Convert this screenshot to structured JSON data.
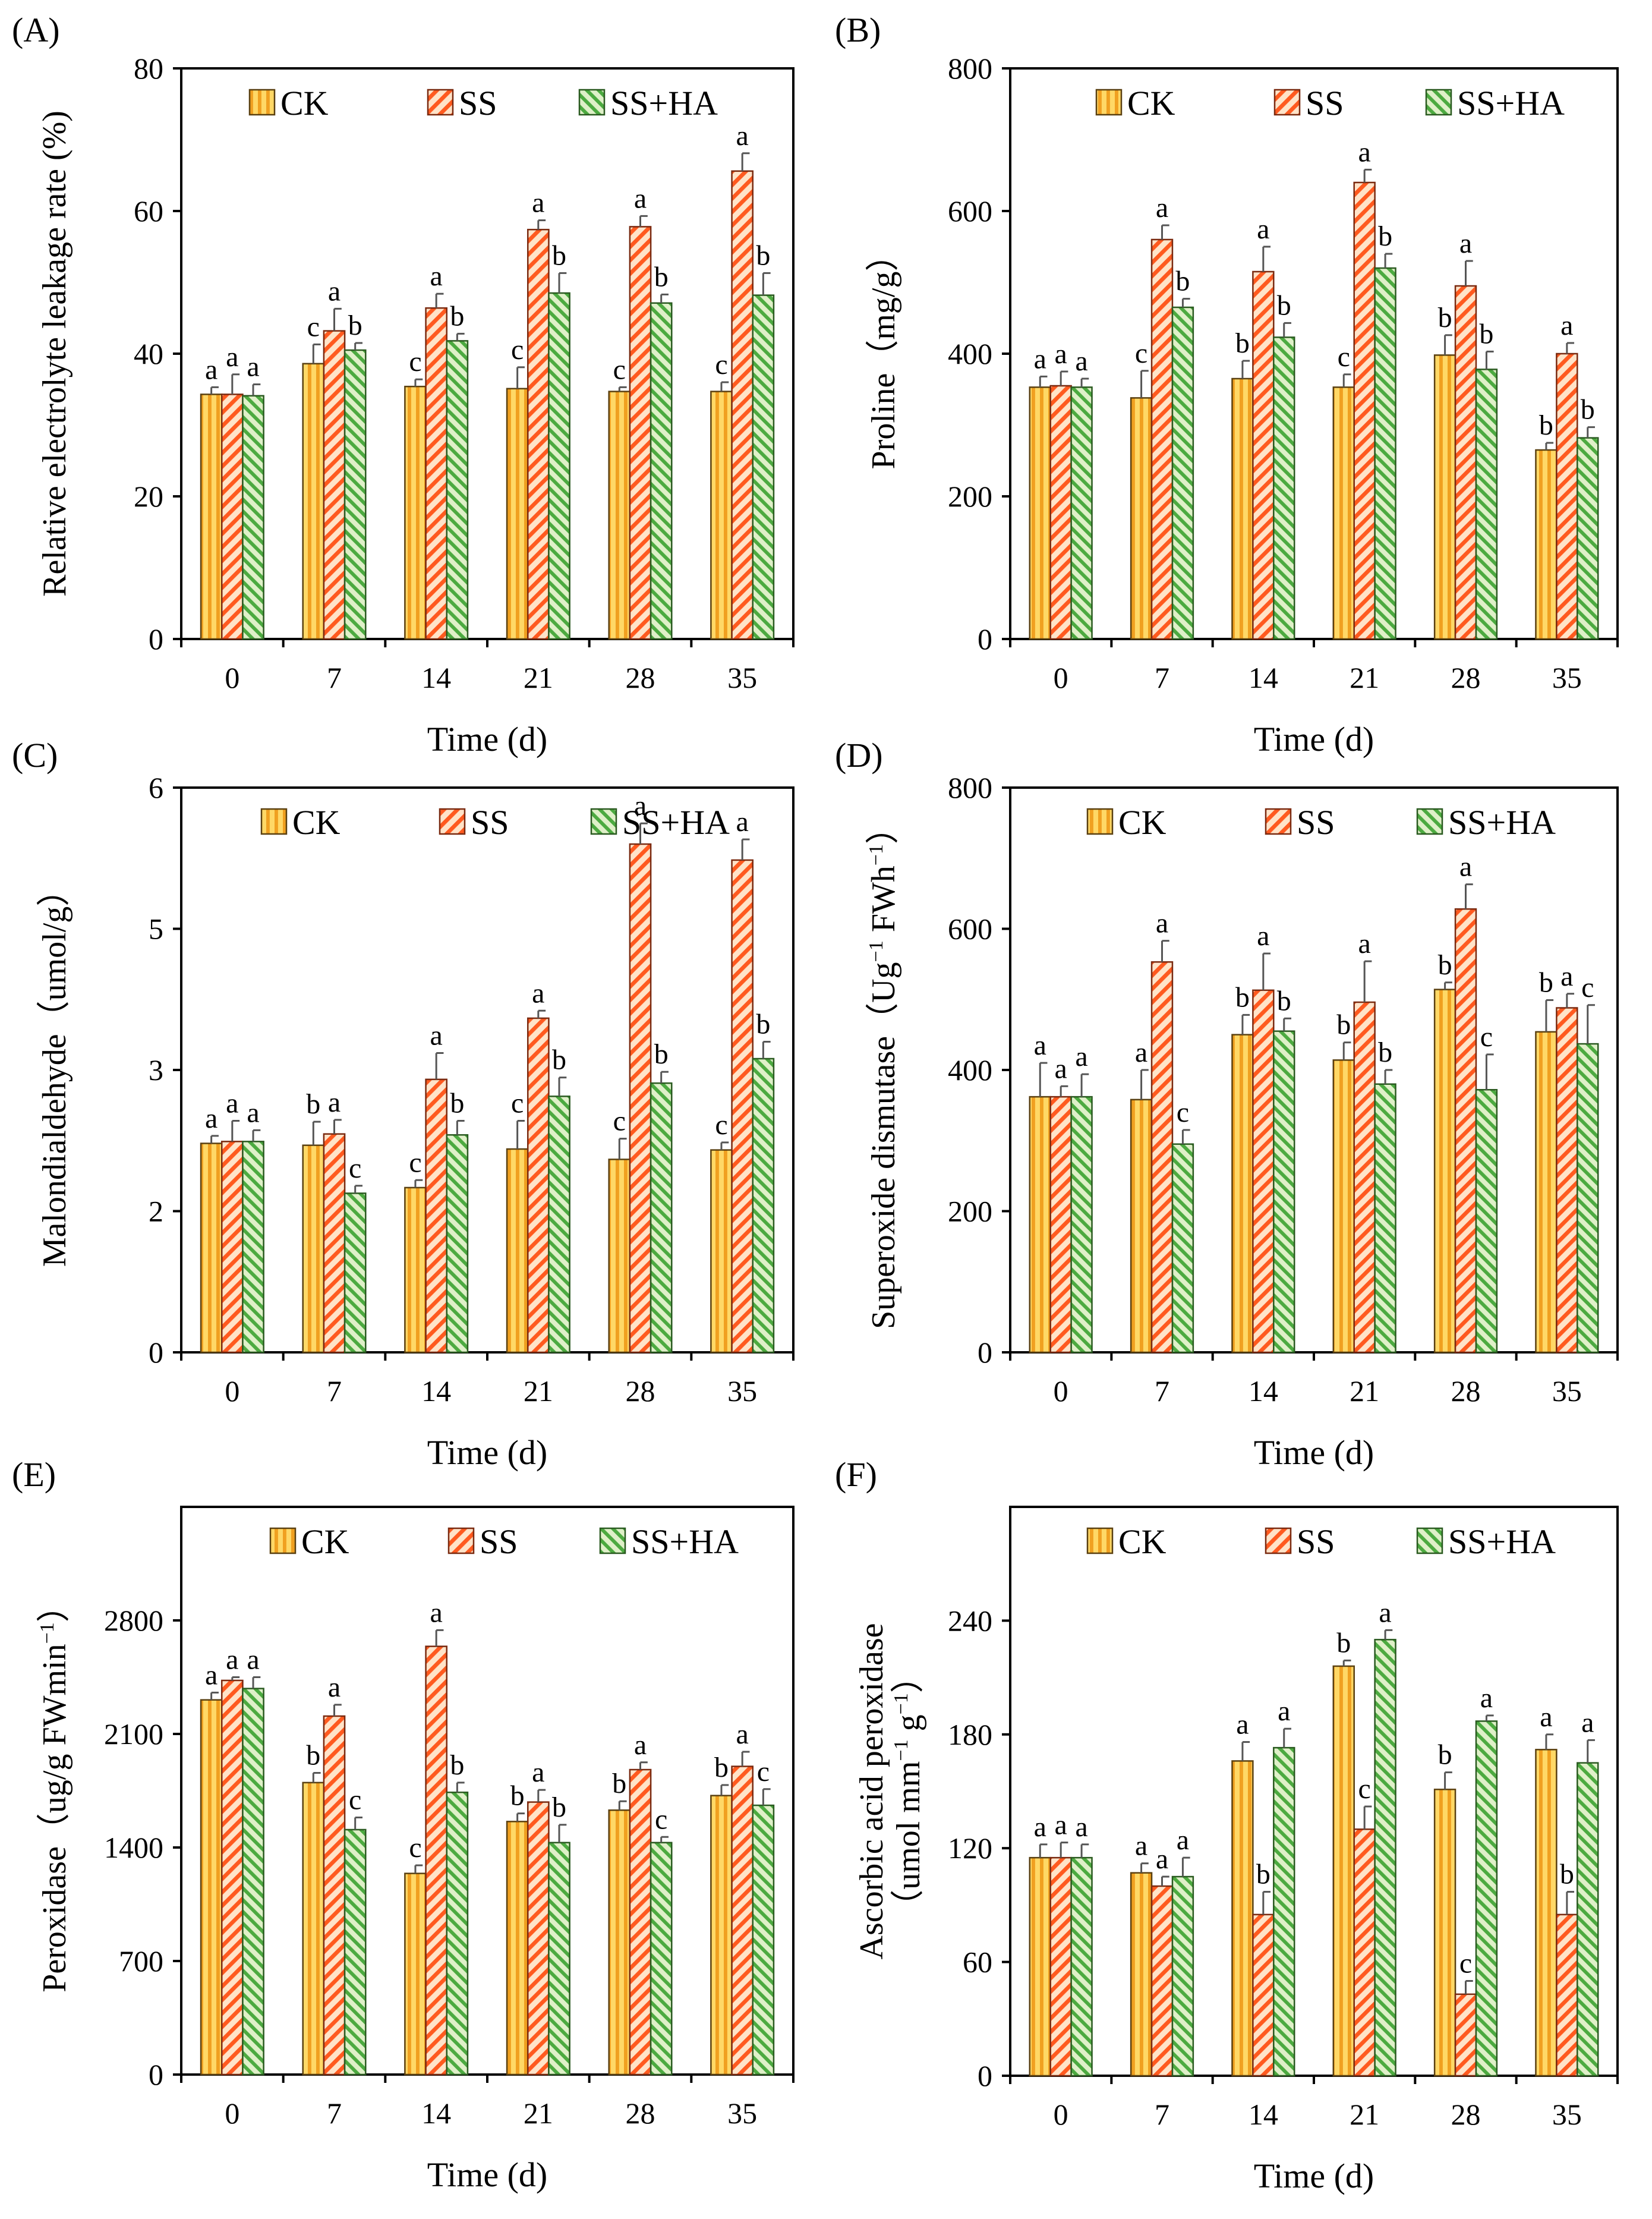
{
  "figure": {
    "legend_labels": [
      "CK",
      "SS",
      "SS+HA"
    ]
  },
  "colors": {
    "CK": {
      "fill": "#ffd866",
      "stripe": "#f0a020",
      "edge": "#5a4010"
    },
    "SS": {
      "fill": "#ffe3c8",
      "stripe": "#ff5a1f",
      "edge": "#7a2a10"
    },
    "SS+HA": {
      "fill": "#dff0c8",
      "stripe": "#4caa40",
      "edge": "#2a5a20"
    }
  },
  "chart_data": [
    {
      "id": "A",
      "panel_label": "(A)",
      "type": "bar",
      "title": "",
      "xlabel": "Time (d)",
      "ylabel_lines": [
        "Relative electrolyte leakage rate (%)"
      ],
      "categories": [
        "0",
        "7",
        "14",
        "21",
        "28",
        "35"
      ],
      "ylim": [
        0,
        80
      ],
      "yticks": [
        0,
        20,
        40,
        60,
        80
      ],
      "tick_labels": [
        "0",
        "20",
        "40",
        "60",
        "80"
      ],
      "series": [
        {
          "name": "CK",
          "values": [
            34.3,
            38.6,
            35.4,
            35.1,
            34.7,
            34.7
          ],
          "errors": [
            1.0,
            2.7,
            1.0,
            3.0,
            0.6,
            1.3
          ],
          "letters": [
            "a",
            "c",
            "c",
            "c",
            "c",
            "c"
          ]
        },
        {
          "name": "SS",
          "values": [
            34.3,
            43.2,
            46.4,
            57.4,
            57.8,
            65.6
          ],
          "errors": [
            2.8,
            3.1,
            2.0,
            1.3,
            1.5,
            2.5
          ],
          "letters": [
            "a",
            "a",
            "a",
            "a",
            "a",
            "a"
          ]
        },
        {
          "name": "SS+HA",
          "values": [
            34.1,
            40.5,
            41.8,
            48.5,
            47.1,
            48.2
          ],
          "errors": [
            1.6,
            1.0,
            1.0,
            2.8,
            1.2,
            3.1
          ],
          "letters": [
            "a",
            "b",
            "b",
            "b",
            "b",
            "b"
          ]
        }
      ]
    },
    {
      "id": "B",
      "panel_label": "(B)",
      "type": "bar",
      "title": "",
      "xlabel": "Time (d)",
      "ylabel_lines": [
        "Proline（mg/g）"
      ],
      "categories": [
        "0",
        "7",
        "14",
        "21",
        "28",
        "35"
      ],
      "ylim": [
        0,
        800
      ],
      "yticks": [
        0,
        200,
        400,
        600,
        800
      ],
      "tick_labels": [
        "0",
        "200",
        "400",
        "600",
        "800"
      ],
      "series": [
        {
          "name": "CK",
          "values": [
            353,
            338,
            365,
            353,
            398,
            265
          ],
          "errors": [
            15,
            38,
            25,
            18,
            28,
            10
          ],
          "letters": [
            "a",
            "c",
            "b",
            "c",
            "b",
            "b"
          ]
        },
        {
          "name": "SS",
          "values": [
            355,
            560,
            515,
            640,
            495,
            400
          ],
          "errors": [
            20,
            20,
            35,
            18,
            35,
            15
          ],
          "letters": [
            "a",
            "a",
            "a",
            "a",
            "a",
            "a"
          ]
        },
        {
          "name": "SS+HA",
          "values": [
            353,
            465,
            423,
            520,
            378,
            282
          ],
          "errors": [
            12,
            12,
            20,
            20,
            25,
            15
          ],
          "letters": [
            "a",
            "b",
            "b",
            "b",
            "b",
            "b"
          ]
        }
      ]
    },
    {
      "id": "C",
      "panel_label": "(C)",
      "type": "bar",
      "title": "",
      "xlabel": "Time (d)",
      "ylabel_lines": [
        "Malondialdehyde（umol/g）"
      ],
      "categories": [
        "0",
        "7",
        "14",
        "21",
        "28",
        "35"
      ],
      "ylim": [
        0,
        6
      ],
      "yticks": [
        0,
        1.5,
        3,
        4.5,
        6
      ],
      "tick_labels": [
        "0",
        "2",
        "3",
        "5",
        "6"
      ],
      "series": [
        {
          "name": "CK",
          "values": [
            2.22,
            2.2,
            1.75,
            2.16,
            2.05,
            2.15
          ],
          "errors": [
            0.08,
            0.25,
            0.08,
            0.3,
            0.22,
            0.08
          ],
          "letters": [
            "a",
            "b",
            "c",
            "c",
            "c",
            "c"
          ]
        },
        {
          "name": "SS",
          "values": [
            2.24,
            2.32,
            2.9,
            3.55,
            5.4,
            5.23
          ],
          "errors": [
            0.22,
            0.15,
            0.28,
            0.08,
            0.22,
            0.22
          ],
          "letters": [
            "a",
            "a",
            "a",
            "a",
            "a",
            "a"
          ]
        },
        {
          "name": "SS+HA",
          "values": [
            2.24,
            1.69,
            2.31,
            2.72,
            2.86,
            3.12
          ],
          "errors": [
            0.12,
            0.08,
            0.15,
            0.2,
            0.12,
            0.18
          ],
          "letters": [
            "a",
            "c",
            "b",
            "b",
            "b",
            "b"
          ]
        }
      ]
    },
    {
      "id": "D",
      "panel_label": "(D)",
      "type": "bar",
      "title": "",
      "xlabel": "Time (d)",
      "ylabel_lines": [
        "Superoxide dismutase（Ug",
        "−1",
        " FWh",
        "−1",
        "）"
      ],
      "categories": [
        "0",
        "7",
        "14",
        "21",
        "28",
        "35"
      ],
      "ylim": [
        0,
        800
      ],
      "yticks": [
        0,
        200,
        400,
        600,
        800
      ],
      "tick_labels": [
        "0",
        "200",
        "400",
        "600",
        "800"
      ],
      "series": [
        {
          "name": "CK",
          "values": [
            362,
            358,
            450,
            414,
            514,
            454
          ],
          "errors": [
            48,
            42,
            28,
            25,
            10,
            45
          ],
          "letters": [
            "a",
            "a",
            "b",
            "b",
            "b",
            "b"
          ]
        },
        {
          "name": "SS",
          "values": [
            362,
            553,
            513,
            496,
            628,
            488
          ],
          "errors": [
            15,
            30,
            52,
            58,
            35,
            20
          ],
          "letters": [
            "a",
            "a",
            "a",
            "a",
            "a",
            "a"
          ]
        },
        {
          "name": "SS+HA",
          "values": [
            362,
            295,
            455,
            380,
            372,
            437
          ],
          "errors": [
            32,
            20,
            18,
            20,
            50,
            55
          ],
          "letters": [
            "a",
            "c",
            "b",
            "b",
            "c",
            "c"
          ]
        }
      ]
    },
    {
      "id": "E",
      "panel_label": "(E)",
      "type": "bar",
      "title": "",
      "xlabel": "Time (d)",
      "ylabel_lines": [
        "Peroxidase（ug/g FWmin",
        "−1",
        "）"
      ],
      "categories": [
        "0",
        "7",
        "14",
        "21",
        "28",
        "35"
      ],
      "ylim": [
        0,
        3500
      ],
      "yticks": [
        0,
        700,
        1400,
        2100,
        2800
      ],
      "tick_labels": [
        "0",
        "700",
        "1400",
        "2100",
        "2800"
      ],
      "series": [
        {
          "name": "CK",
          "values": [
            2310,
            1800,
            1240,
            1560,
            1630,
            1720
          ],
          "errors": [
            45,
            60,
            50,
            50,
            55,
            65
          ],
          "letters": [
            "a",
            "b",
            "c",
            "b",
            "b",
            "b"
          ]
        },
        {
          "name": "SS",
          "values": [
            2430,
            2210,
            2640,
            1680,
            1880,
            1900
          ],
          "errors": [
            20,
            70,
            100,
            75,
            45,
            90
          ],
          "letters": [
            "a",
            "a",
            "a",
            "a",
            "a",
            "a"
          ]
        },
        {
          "name": "SS+HA",
          "values": [
            2380,
            1510,
            1740,
            1430,
            1430,
            1660
          ],
          "errors": [
            70,
            75,
            60,
            110,
            35,
            100
          ],
          "letters": [
            "a",
            "c",
            "b",
            "b",
            "c",
            "c"
          ]
        }
      ]
    },
    {
      "id": "F",
      "panel_label": "(F)",
      "type": "bar",
      "title": "",
      "xlabel": "Time (d)",
      "ylabel_lines": [
        "Ascorbic acid peroxidase",
        "（umol mm",
        "−1",
        " g",
        "−1",
        "）"
      ],
      "categories": [
        "0",
        "7",
        "14",
        "21",
        "28",
        "35"
      ],
      "ylim": [
        0,
        300
      ],
      "yticks": [
        0,
        60,
        120,
        180,
        240
      ],
      "tick_labels": [
        "0",
        "60",
        "120",
        "180",
        "240"
      ],
      "series": [
        {
          "name": "CK",
          "values": [
            115,
            107,
            166,
            216,
            151,
            172
          ],
          "errors": [
            7,
            5,
            10,
            3,
            9,
            8
          ],
          "letters": [
            "a",
            "a",
            "a",
            "b",
            "b",
            "a"
          ]
        },
        {
          "name": "SS",
          "values": [
            115,
            100,
            85,
            130,
            43,
            85
          ],
          "errors": [
            8,
            5,
            12,
            12,
            7,
            12
          ],
          "letters": [
            "a",
            "a",
            "b",
            "c",
            "c",
            "b"
          ]
        },
        {
          "name": "SS+HA",
          "values": [
            115,
            105,
            173,
            230,
            187,
            165
          ],
          "errors": [
            7,
            10,
            10,
            5,
            3,
            12
          ],
          "letters": [
            "a",
            "a",
            "a",
            "a",
            "a",
            "a"
          ]
        }
      ]
    }
  ]
}
